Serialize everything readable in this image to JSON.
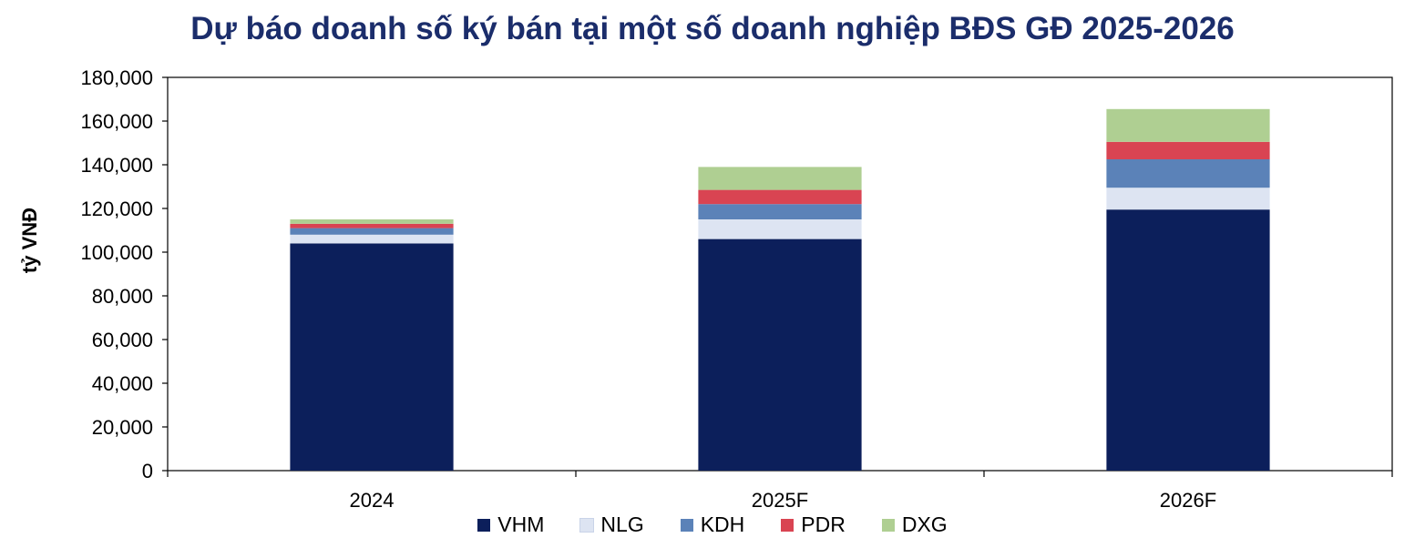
{
  "chart_data": {
    "type": "bar",
    "stacked": true,
    "title": "Dự báo doanh số ký bán tại một số doanh nghiệp BĐS GĐ 2025-2026",
    "ylabel": "tỷ VNĐ",
    "xlabel": "",
    "ylim": [
      0,
      180000
    ],
    "yticks": [
      0,
      20000,
      40000,
      60000,
      80000,
      100000,
      120000,
      140000,
      160000,
      180000
    ],
    "ytick_labels": [
      "0",
      "20,000",
      "40,000",
      "60,000",
      "80,000",
      "100,000",
      "120,000",
      "140,000",
      "160,000",
      "180,000"
    ],
    "categories": [
      "2024",
      "2025F",
      "2026F"
    ],
    "series": [
      {
        "name": "VHM",
        "color": "#0c1f5b",
        "values": [
          104000,
          106000,
          119500
        ]
      },
      {
        "name": "NLG",
        "color": "#dde4f2",
        "values": [
          4000,
          9000,
          10000
        ]
      },
      {
        "name": "KDH",
        "color": "#5b82b8",
        "values": [
          3000,
          7000,
          13000
        ]
      },
      {
        "name": "PDR",
        "color": "#d94452",
        "values": [
          2000,
          6500,
          8000
        ]
      },
      {
        "name": "DXG",
        "color": "#afcf92",
        "values": [
          2000,
          10500,
          15000
        ]
      }
    ],
    "grid": false,
    "legend_position": "bottom"
  }
}
